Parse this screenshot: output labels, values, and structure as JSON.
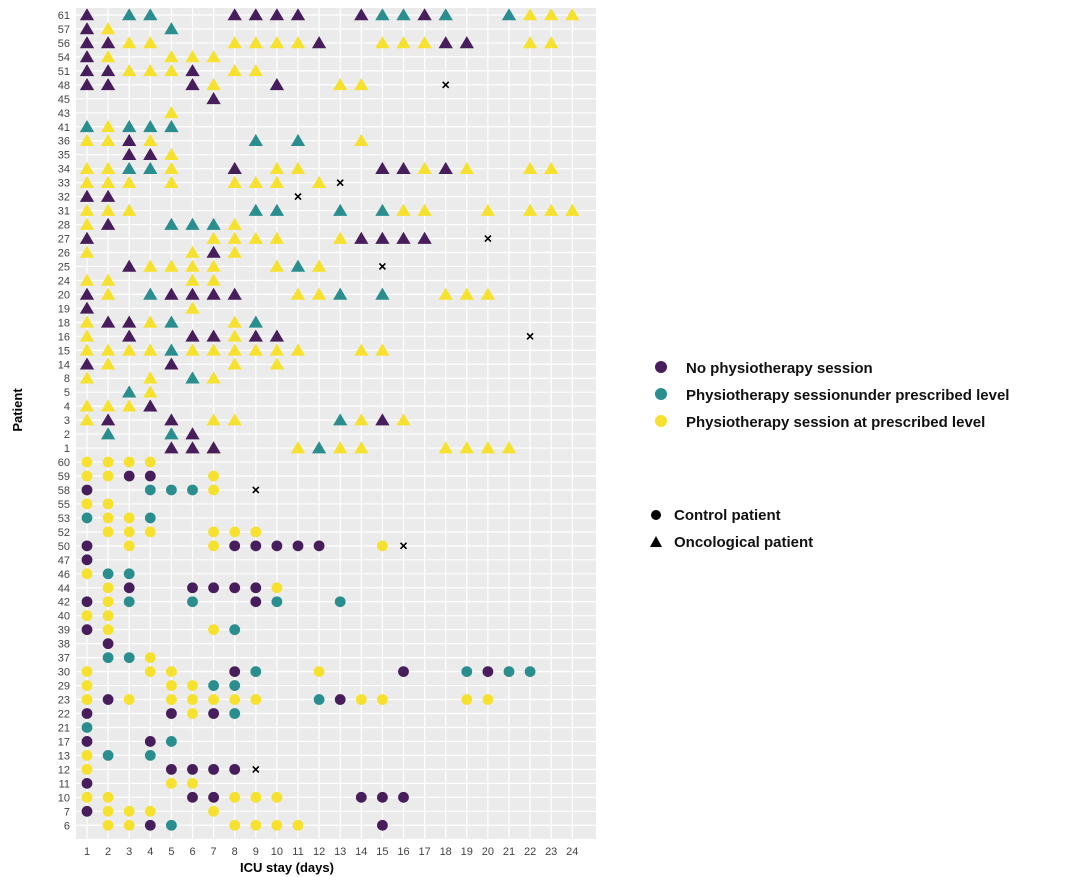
{
  "chart_data": {
    "type": "scatter",
    "xlabel": "ICU stay (days)",
    "ylabel": "Patient",
    "x_ticks": [
      1,
      2,
      3,
      4,
      5,
      6,
      7,
      8,
      9,
      10,
      11,
      12,
      13,
      14,
      15,
      16,
      17,
      18,
      19,
      20,
      21,
      22,
      23,
      24
    ],
    "patients": [
      "61",
      "57",
      "56",
      "54",
      "51",
      "48",
      "45",
      "43",
      "41",
      "36",
      "35",
      "34",
      "33",
      "32",
      "31",
      "28",
      "27",
      "26",
      "25",
      "24",
      "20",
      "19",
      "18",
      "16",
      "15",
      "14",
      "8",
      "5",
      "4",
      "3",
      "2",
      "1",
      "60",
      "59",
      "58",
      "55",
      "53",
      "52",
      "50",
      "47",
      "46",
      "44",
      "42",
      "40",
      "39",
      "38",
      "37",
      "30",
      "29",
      "23",
      "22",
      "21",
      "17",
      "13",
      "12",
      "11",
      "10",
      "7",
      "6"
    ],
    "status_colors": {
      "N": "#471e5b",
      "U": "#2b8e8e",
      "P": "#f6e12e"
    },
    "grid": true,
    "sessions": {
      "61": "N1 U3 U4 N8 N9 N10 N11 N14 U15 U16 N17 U18 U21 P22 P23 P24",
      "57": "N1 P2 U5",
      "56": "N1 N2 P3 P4 P8 P9 P10 P11 N12 P15 P16 P17 N18 N19 P22 P23",
      "54": "N1 P2 P5 P6 P7",
      "51": "N1 N2 P3 P4 P5 N6 P8 P9",
      "48": "N1 N2 N6 P7 N10 P13 P14",
      "45": "N7",
      "43": "P5",
      "41": "U1 P2 U3 U4 U5",
      "36": "P1 P2 N3 P4 U9 U11 P14",
      "35": "N3 N4 P5",
      "34": "P1 P2 U3 U4 P5 N8 P10 P11 N15 N16 P17 N18 P19 P22 P23",
      "33": "P1 P2 P3 P5 P8 P9 P10 P12",
      "32": "N1 N2",
      "31": "P1 P2 P3 U9 U10 U13 U15 P16 P17 P20 P22 P23 P24",
      "28": "P1 N2 U5 U6 U7 P8",
      "27": "N1 P7 P8 P9 P10 P13 N14 N15 N16 N17",
      "26": "P1 P6 N7 P8",
      "25": "N3 P4 P5 P6 P7 P10 U11 P12",
      "24": "P1 P2 P6 P7",
      "20": "N1 P2 U4 N5 N6 N7 N8 P11 P12 U13 U15 P18 P19 P20",
      "19": "N1 P6",
      "18": "P1 N2 N3 P4 U5 P8 U9",
      "16": "P1 N3 N6 N7 P8 N9 N10",
      "15": "P1 P2 P3 P4 U5 P6 P7 P8 P9 P10 P11 P14 P15",
      "14": "N1 P2 N5 P8 P10",
      "8": "P1 P4 U6 P7",
      "5": "U3 P4",
      "4": "P1 P2 P3 N4",
      "3": "P1 N2 N5 P7 P8 U13 P14 N15 P16",
      "2": "U2 U5 N6",
      "1": "N5 N6 P7 N7 P11 U12 P13 P14 P18 P19 P20 P21",
      "60": "P1 P2 P3 P4",
      "59": "P1 P2 N3 N4 P7",
      "58": "N1 U4 U5 U6 P7",
      "55": "P1 P2",
      "53": "U1 P2 P3 U4",
      "52": "P2 P3 P4 P7 P8 P9",
      "50": "N1 P3 P7 N8 N9 N10 N11 N12 P15",
      "47": "N1",
      "46": "P1 U2 U3",
      "44": "P2 N3 N6 N7 N8 N9 P10",
      "42": "N1 P2 U3 U6 N9 U10 U13",
      "40": "P1 P2",
      "39": "N1 P2 P7 U8",
      "38": "N2",
      "37": "U2 U3 P4",
      "30": "P1 P4 P5 N8 U9 P12 N16 U19 N20 U21 U22",
      "29": "P1 P5 P6 U7 U8",
      "23": "P1 N2 P3 P5 P6 P7 P8 P9 U12 N13 P14 P15 P19 P20",
      "22": "N1 N5 P6 N7 U8",
      "21": "U1",
      "17": "N1 N4 U5",
      "13": "P1 U2 U4",
      "12": "P1 N5 N6 N7 N8",
      "11": "N1 P5 P6",
      "10": "P1 P2 N6 N7 P8 P9 P10 N14 N15 N16",
      "7": "N1 P2 P3 P4 P7",
      "6": "P2 P3 N4 U5 P8 P9 P10 P11 N15"
    },
    "discharge_marks": [
      {
        "patient": "48",
        "day": 18
      },
      {
        "patient": "33",
        "day": 13
      },
      {
        "patient": "32",
        "day": 11
      },
      {
        "patient": "27",
        "day": 20
      },
      {
        "patient": "25",
        "day": 15
      },
      {
        "patient": "16",
        "day": 22
      },
      {
        "patient": "58",
        "day": 9
      },
      {
        "patient": "50",
        "day": 16
      },
      {
        "patient": "12",
        "day": 9
      }
    ]
  },
  "legend": {
    "status": [
      {
        "label": "No physiotherapy session",
        "color": "#471e5b"
      },
      {
        "label": "Physiotherapy sessionunder prescribed level",
        "color": "#2b8e8e"
      },
      {
        "label": "Physiotherapy session at prescribed level",
        "color": "#f6e12e"
      }
    ],
    "groups": [
      {
        "label": "Control patient",
        "shape": "circle"
      },
      {
        "label": "Oncological patient",
        "shape": "triangle"
      }
    ]
  }
}
